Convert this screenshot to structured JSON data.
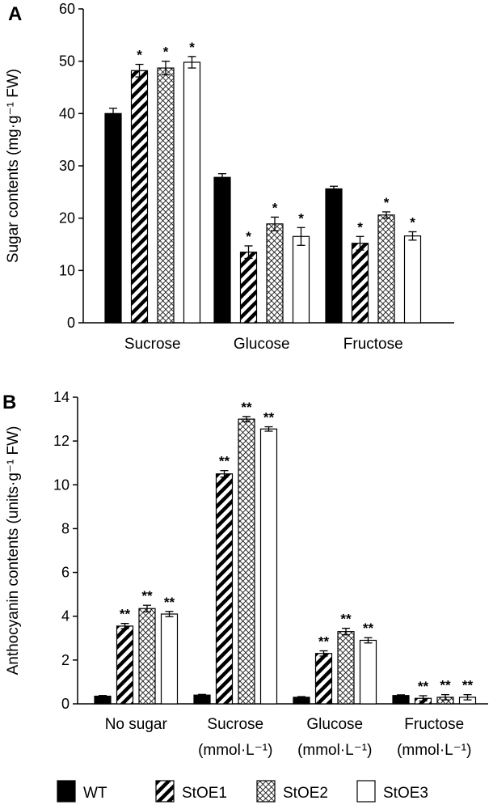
{
  "colors": {
    "WT": "#000000",
    "StOE1": "hatch",
    "StOE2": "crosshatch",
    "StOE3": "#ffffff"
  },
  "legend": [
    "WT",
    "StOE1",
    "StOE2",
    "StOE3"
  ],
  "chart_data": [
    {
      "panel": "A",
      "type": "bar",
      "ylabel": "Sugar contents (mg·g⁻¹ FW)",
      "ylim": [
        0,
        60
      ],
      "yticks": [
        0,
        10,
        20,
        30,
        40,
        50,
        60
      ],
      "categories": [
        "Sucrose",
        "Glucose",
        "Fructose"
      ],
      "category_sublabels": [
        "",
        "",
        ""
      ],
      "series": [
        {
          "name": "WT",
          "values": [
            40.0,
            27.8,
            25.6
          ],
          "errors": [
            1.0,
            0.7,
            0.5
          ],
          "sig": [
            "",
            "",
            ""
          ]
        },
        {
          "name": "StOE1",
          "values": [
            48.2,
            13.5,
            15.2
          ],
          "errors": [
            1.2,
            1.2,
            1.3
          ],
          "sig": [
            "*",
            "*",
            "*"
          ]
        },
        {
          "name": "StOE2",
          "values": [
            48.7,
            18.9,
            20.6
          ],
          "errors": [
            1.3,
            1.3,
            0.6
          ],
          "sig": [
            "*",
            "*",
            "*"
          ]
        },
        {
          "name": "StOE3",
          "values": [
            49.8,
            16.5,
            16.6
          ],
          "errors": [
            1.1,
            1.7,
            0.8
          ],
          "sig": [
            "*",
            "*",
            "*"
          ]
        }
      ]
    },
    {
      "panel": "B",
      "type": "bar",
      "ylabel": "Anthocyanin contents (units·g⁻¹ FW)",
      "ylim": [
        0,
        14
      ],
      "yticks": [
        0,
        2,
        4,
        6,
        8,
        10,
        12,
        14
      ],
      "categories": [
        "No sugar",
        "Sucrose",
        "Glucose",
        "Fructose"
      ],
      "category_sublabels": [
        "",
        "(mmol·L⁻¹)",
        "(mmol·L⁻¹)",
        "(mmol·L⁻¹)"
      ],
      "series": [
        {
          "name": "WT",
          "values": [
            0.35,
            0.4,
            0.3,
            0.38
          ],
          "errors": [
            0.03,
            0.03,
            0.03,
            0.03
          ],
          "sig": [
            "",
            "",
            "",
            ""
          ]
        },
        {
          "name": "StOE1",
          "values": [
            3.55,
            10.5,
            2.3,
            0.25
          ],
          "errors": [
            0.12,
            0.15,
            0.12,
            0.12
          ],
          "sig": [
            "**",
            "**",
            "**",
            "**"
          ]
        },
        {
          "name": "StOE2",
          "values": [
            4.35,
            13.0,
            3.3,
            0.3
          ],
          "errors": [
            0.15,
            0.12,
            0.15,
            0.12
          ],
          "sig": [
            "**",
            "**",
            "**",
            "**"
          ]
        },
        {
          "name": "StOE3",
          "values": [
            4.1,
            12.55,
            2.9,
            0.3
          ],
          "errors": [
            0.12,
            0.1,
            0.12,
            0.12
          ],
          "sig": [
            "**",
            "**",
            "**",
            "**"
          ]
        }
      ]
    }
  ]
}
